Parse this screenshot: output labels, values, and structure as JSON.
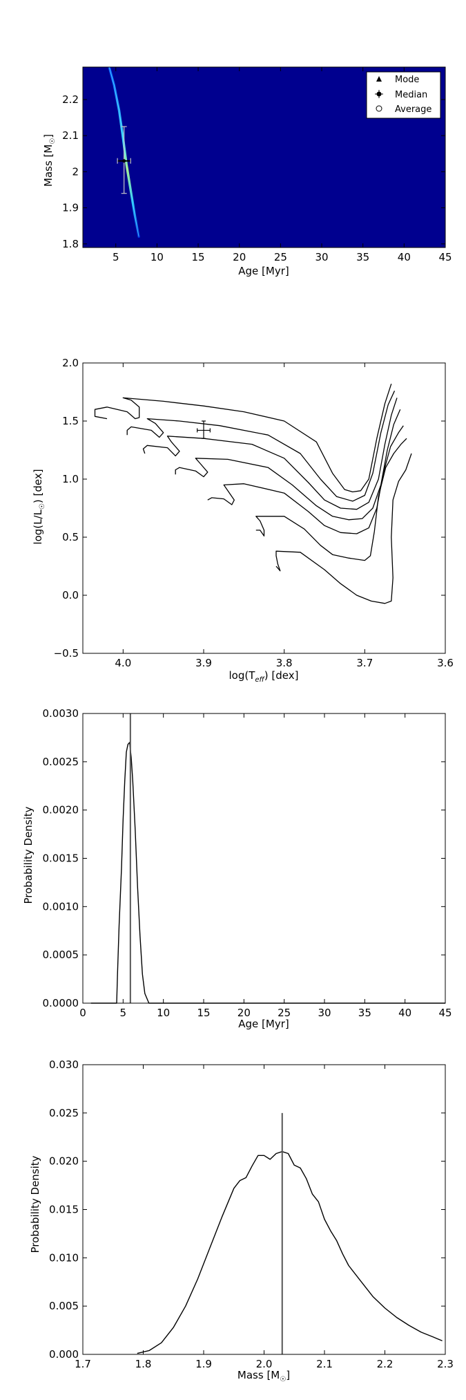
{
  "chart_data": [
    {
      "type": "heatmap",
      "xlabel": "Age [Myr]",
      "ylabel": "Mass [M",
      "ylabel_sub": "☉",
      "ylabel_close": "]",
      "xlim": [
        1,
        45
      ],
      "ylim": [
        1.79,
        2.29
      ],
      "xticks": [
        5,
        10,
        15,
        20,
        25,
        30,
        35,
        40,
        45
      ],
      "yticks": [
        1.8,
        1.9,
        2.0,
        2.1,
        2.2
      ],
      "background_color": "#00008f",
      "ridge": [
        {
          "x": 4.2,
          "y": 2.29
        },
        {
          "x": 4.8,
          "y": 2.24
        },
        {
          "x": 5.4,
          "y": 2.17
        },
        {
          "x": 5.9,
          "y": 2.09
        },
        {
          "x": 6.3,
          "y": 2.02
        },
        {
          "x": 6.8,
          "y": 1.95
        },
        {
          "x": 7.3,
          "y": 1.88
        },
        {
          "x": 7.8,
          "y": 1.82
        }
      ],
      "median": {
        "x": 6.0,
        "y": 2.03,
        "x_err": [
          5.2,
          6.8
        ],
        "y_err": [
          1.94,
          2.125
        ]
      },
      "legend": {
        "position": "top-right",
        "entries": [
          {
            "label": "Mode",
            "marker": "triangle"
          },
          {
            "label": "Median",
            "marker": "errorbar-circle"
          },
          {
            "label": "Average",
            "marker": "open-circle"
          }
        ]
      }
    },
    {
      "type": "line",
      "xlabel": "log(T",
      "xlabel_sub": "eff",
      "xlabel_close": ") [dex]",
      "ylabel": "log(L/L",
      "ylabel_sub": "☉",
      "ylabel_close": ") [dex]",
      "xlim": [
        4.05,
        3.6
      ],
      "ylim": [
        -0.5,
        2.0
      ],
      "xticks": [
        4.0,
        3.9,
        3.8,
        3.7,
        3.6
      ],
      "xtick_labels": [
        "4.0",
        "3.9",
        "3.8",
        "3.7",
        "3.6"
      ],
      "yticks": [
        -0.5,
        0.0,
        0.5,
        1.0,
        1.5,
        2.0
      ],
      "ytick_labels": [
        "−0.5",
        "0.0",
        "0.5",
        "1.0",
        "1.5",
        "2.0"
      ],
      "series": [
        {
          "points": [
            [
              4.02,
              1.52
            ],
            [
              4.035,
              1.54
            ],
            [
              4.035,
              1.6
            ],
            [
              4.02,
              1.62
            ],
            [
              3.995,
              1.58
            ],
            [
              3.985,
              1.52
            ],
            [
              3.98,
              1.53
            ],
            [
              3.98,
              1.62
            ],
            [
              3.99,
              1.68
            ],
            [
              4.0,
              1.7
            ],
            [
              3.95,
              1.67
            ],
            [
              3.9,
              1.63
            ],
            [
              3.85,
              1.58
            ],
            [
              3.8,
              1.5
            ],
            [
              3.76,
              1.32
            ],
            [
              3.74,
              1.05
            ],
            [
              3.725,
              0.91
            ],
            [
              3.715,
              0.89
            ],
            [
              3.705,
              0.9
            ],
            [
              3.695,
              1.0
            ],
            [
              3.685,
              1.35
            ],
            [
              3.675,
              1.65
            ],
            [
              3.667,
              1.82
            ]
          ]
        },
        {
          "points": [
            [
              3.995,
              1.38
            ],
            [
              3.995,
              1.42
            ],
            [
              3.99,
              1.45
            ],
            [
              3.965,
              1.42
            ],
            [
              3.955,
              1.36
            ],
            [
              3.95,
              1.4
            ],
            [
              3.96,
              1.48
            ],
            [
              3.97,
              1.52
            ],
            [
              3.93,
              1.5
            ],
            [
              3.88,
              1.46
            ],
            [
              3.82,
              1.38
            ],
            [
              3.78,
              1.22
            ],
            [
              3.755,
              1.0
            ],
            [
              3.735,
              0.85
            ],
            [
              3.715,
              0.81
            ],
            [
              3.7,
              0.86
            ],
            [
              3.69,
              1.05
            ],
            [
              3.68,
              1.4
            ],
            [
              3.671,
              1.64
            ],
            [
              3.663,
              1.76
            ]
          ]
        },
        {
          "points": [
            [
              3.973,
              1.22
            ],
            [
              3.975,
              1.26
            ],
            [
              3.97,
              1.29
            ],
            [
              3.945,
              1.27
            ],
            [
              3.935,
              1.2
            ],
            [
              3.93,
              1.24
            ],
            [
              3.94,
              1.32
            ],
            [
              3.945,
              1.37
            ],
            [
              3.9,
              1.35
            ],
            [
              3.84,
              1.3
            ],
            [
              3.8,
              1.18
            ],
            [
              3.77,
              0.97
            ],
            [
              3.75,
              0.82
            ],
            [
              3.73,
              0.75
            ],
            [
              3.71,
              0.74
            ],
            [
              3.695,
              0.8
            ],
            [
              3.683,
              1.0
            ],
            [
              3.675,
              1.3
            ],
            [
              3.667,
              1.55
            ],
            [
              3.66,
              1.7
            ]
          ]
        },
        {
          "points": [
            [
              3.935,
              1.04
            ],
            [
              3.935,
              1.08
            ],
            [
              3.93,
              1.1
            ],
            [
              3.91,
              1.07
            ],
            [
              3.9,
              1.02
            ],
            [
              3.895,
              1.06
            ],
            [
              3.905,
              1.14
            ],
            [
              3.91,
              1.18
            ],
            [
              3.87,
              1.17
            ],
            [
              3.82,
              1.1
            ],
            [
              3.79,
              0.95
            ],
            [
              3.76,
              0.77
            ],
            [
              3.74,
              0.68
            ],
            [
              3.72,
              0.65
            ],
            [
              3.703,
              0.66
            ],
            [
              3.69,
              0.75
            ],
            [
              3.68,
              0.95
            ],
            [
              3.672,
              1.25
            ],
            [
              3.664,
              1.47
            ],
            [
              3.656,
              1.6
            ]
          ]
        },
        {
          "points": [
            [
              3.895,
              0.82
            ],
            [
              3.89,
              0.84
            ],
            [
              3.875,
              0.83
            ],
            [
              3.865,
              0.78
            ],
            [
              3.862,
              0.82
            ],
            [
              3.87,
              0.9
            ],
            [
              3.875,
              0.95
            ],
            [
              3.85,
              0.96
            ],
            [
              3.8,
              0.88
            ],
            [
              3.77,
              0.72
            ],
            [
              3.75,
              0.6
            ],
            [
              3.73,
              0.54
            ],
            [
              3.71,
              0.53
            ],
            [
              3.695,
              0.58
            ],
            [
              3.685,
              0.75
            ],
            [
              3.677,
              1.05
            ],
            [
              3.668,
              1.28
            ],
            [
              3.658,
              1.4
            ],
            [
              3.652,
              1.46
            ]
          ]
        },
        {
          "points": [
            [
              3.835,
              0.56
            ],
            [
              3.83,
              0.56
            ],
            [
              3.825,
              0.51
            ],
            [
              3.825,
              0.56
            ],
            [
              3.83,
              0.64
            ],
            [
              3.835,
              0.68
            ],
            [
              3.8,
              0.68
            ],
            [
              3.775,
              0.57
            ],
            [
              3.755,
              0.43
            ],
            [
              3.74,
              0.35
            ],
            [
              3.72,
              0.32
            ],
            [
              3.7,
              0.3
            ],
            [
              3.693,
              0.34
            ],
            [
              3.688,
              0.55
            ],
            [
              3.683,
              0.85
            ],
            [
              3.674,
              1.1
            ],
            [
              3.664,
              1.22
            ],
            [
              3.655,
              1.3
            ],
            [
              3.648,
              1.35
            ]
          ]
        },
        {
          "points": [
            [
              3.81,
              0.25
            ],
            [
              3.805,
              0.21
            ],
            [
              3.808,
              0.27
            ],
            [
              3.81,
              0.34
            ],
            [
              3.81,
              0.38
            ],
            [
              3.78,
              0.37
            ],
            [
              3.75,
              0.22
            ],
            [
              3.73,
              0.1
            ],
            [
              3.71,
              0.0
            ],
            [
              3.692,
              -0.05
            ],
            [
              3.675,
              -0.07
            ],
            [
              3.667,
              -0.05
            ],
            [
              3.665,
              0.15
            ],
            [
              3.667,
              0.5
            ],
            [
              3.665,
              0.82
            ],
            [
              3.658,
              0.98
            ],
            [
              3.649,
              1.08
            ],
            [
              3.642,
              1.22
            ]
          ]
        }
      ],
      "marker": {
        "x": 3.9,
        "y": 1.42,
        "x_err": [
          3.892,
          3.908
        ],
        "y_err": [
          1.35,
          1.5
        ]
      }
    },
    {
      "type": "line",
      "xlabel": "Age [Myr]",
      "ylabel": "Probability Density",
      "xlim": [
        0,
        45
      ],
      "ylim": [
        0,
        0.003
      ],
      "xticks": [
        0,
        5,
        10,
        15,
        20,
        25,
        30,
        35,
        40,
        45
      ],
      "yticks": [
        0.0,
        0.0005,
        0.001,
        0.0015,
        0.002,
        0.0025,
        0.003
      ],
      "ytick_labels": [
        "0.0000",
        "0.0005",
        "0.0010",
        "0.0015",
        "0.0020",
        "0.0025",
        "0.0030"
      ],
      "series": [
        {
          "points": [
            [
              1,
              0
            ],
            [
              4.2,
              0
            ],
            [
              4.3,
              0.0003
            ],
            [
              4.5,
              0.0008
            ],
            [
              4.8,
              0.0014
            ],
            [
              5.0,
              0.0019
            ],
            [
              5.2,
              0.0023
            ],
            [
              5.4,
              0.0026
            ],
            [
              5.6,
              0.00268
            ],
            [
              5.8,
              0.0027
            ],
            [
              6.0,
              0.00255
            ],
            [
              6.2,
              0.0023
            ],
            [
              6.5,
              0.0018
            ],
            [
              6.8,
              0.0012
            ],
            [
              7.1,
              0.0007
            ],
            [
              7.4,
              0.0003
            ],
            [
              7.7,
              0.0001
            ],
            [
              8.2,
              0
            ],
            [
              45,
              0
            ]
          ]
        }
      ],
      "vline": {
        "x": 5.9,
        "y_top": 0.003
      }
    },
    {
      "type": "line",
      "xlabel": "Mass [M",
      "xlabel_sub": "☉",
      "xlabel_close": "]",
      "ylabel": "Probability Density",
      "xlim": [
        1.7,
        2.3
      ],
      "ylim": [
        0,
        0.03
      ],
      "xticks": [
        1.7,
        1.8,
        1.9,
        2.0,
        2.1,
        2.2,
        2.3
      ],
      "xtick_labels": [
        "1.7",
        "1.8",
        "1.9",
        "2.0",
        "2.1",
        "2.2",
        "2.3"
      ],
      "yticks": [
        0.0,
        0.005,
        0.01,
        0.015,
        0.02,
        0.025,
        0.03
      ],
      "ytick_labels": [
        "0.000",
        "0.005",
        "0.010",
        "0.015",
        "0.020",
        "0.025",
        "0.030"
      ],
      "series": [
        {
          "points": [
            [
              1.79,
              0.0001
            ],
            [
              1.81,
              0.0004
            ],
            [
              1.83,
              0.0012
            ],
            [
              1.85,
              0.0028
            ],
            [
              1.87,
              0.005
            ],
            [
              1.89,
              0.0078
            ],
            [
              1.91,
              0.011
            ],
            [
              1.93,
              0.0142
            ],
            [
              1.95,
              0.0172
            ],
            [
              1.96,
              0.018
            ],
            [
              1.97,
              0.0183
            ],
            [
              1.98,
              0.0195
            ],
            [
              1.99,
              0.0206
            ],
            [
              2.0,
              0.0206
            ],
            [
              2.01,
              0.0202
            ],
            [
              2.02,
              0.0208
            ],
            [
              2.03,
              0.021
            ],
            [
              2.04,
              0.0208
            ],
            [
              2.05,
              0.0196
            ],
            [
              2.06,
              0.0193
            ],
            [
              2.07,
              0.0182
            ],
            [
              2.08,
              0.0166
            ],
            [
              2.09,
              0.0158
            ],
            [
              2.1,
              0.014
            ],
            [
              2.11,
              0.0128
            ],
            [
              2.12,
              0.0118
            ],
            [
              2.13,
              0.0104
            ],
            [
              2.14,
              0.0092
            ],
            [
              2.16,
              0.0076
            ],
            [
              2.18,
              0.006
            ],
            [
              2.2,
              0.0048
            ],
            [
              2.22,
              0.0038
            ],
            [
              2.24,
              0.003
            ],
            [
              2.26,
              0.0023
            ],
            [
              2.28,
              0.0018
            ],
            [
              2.295,
              0.0014
            ]
          ]
        }
      ],
      "vline": {
        "x": 2.03,
        "y_top": 0.025
      }
    }
  ]
}
